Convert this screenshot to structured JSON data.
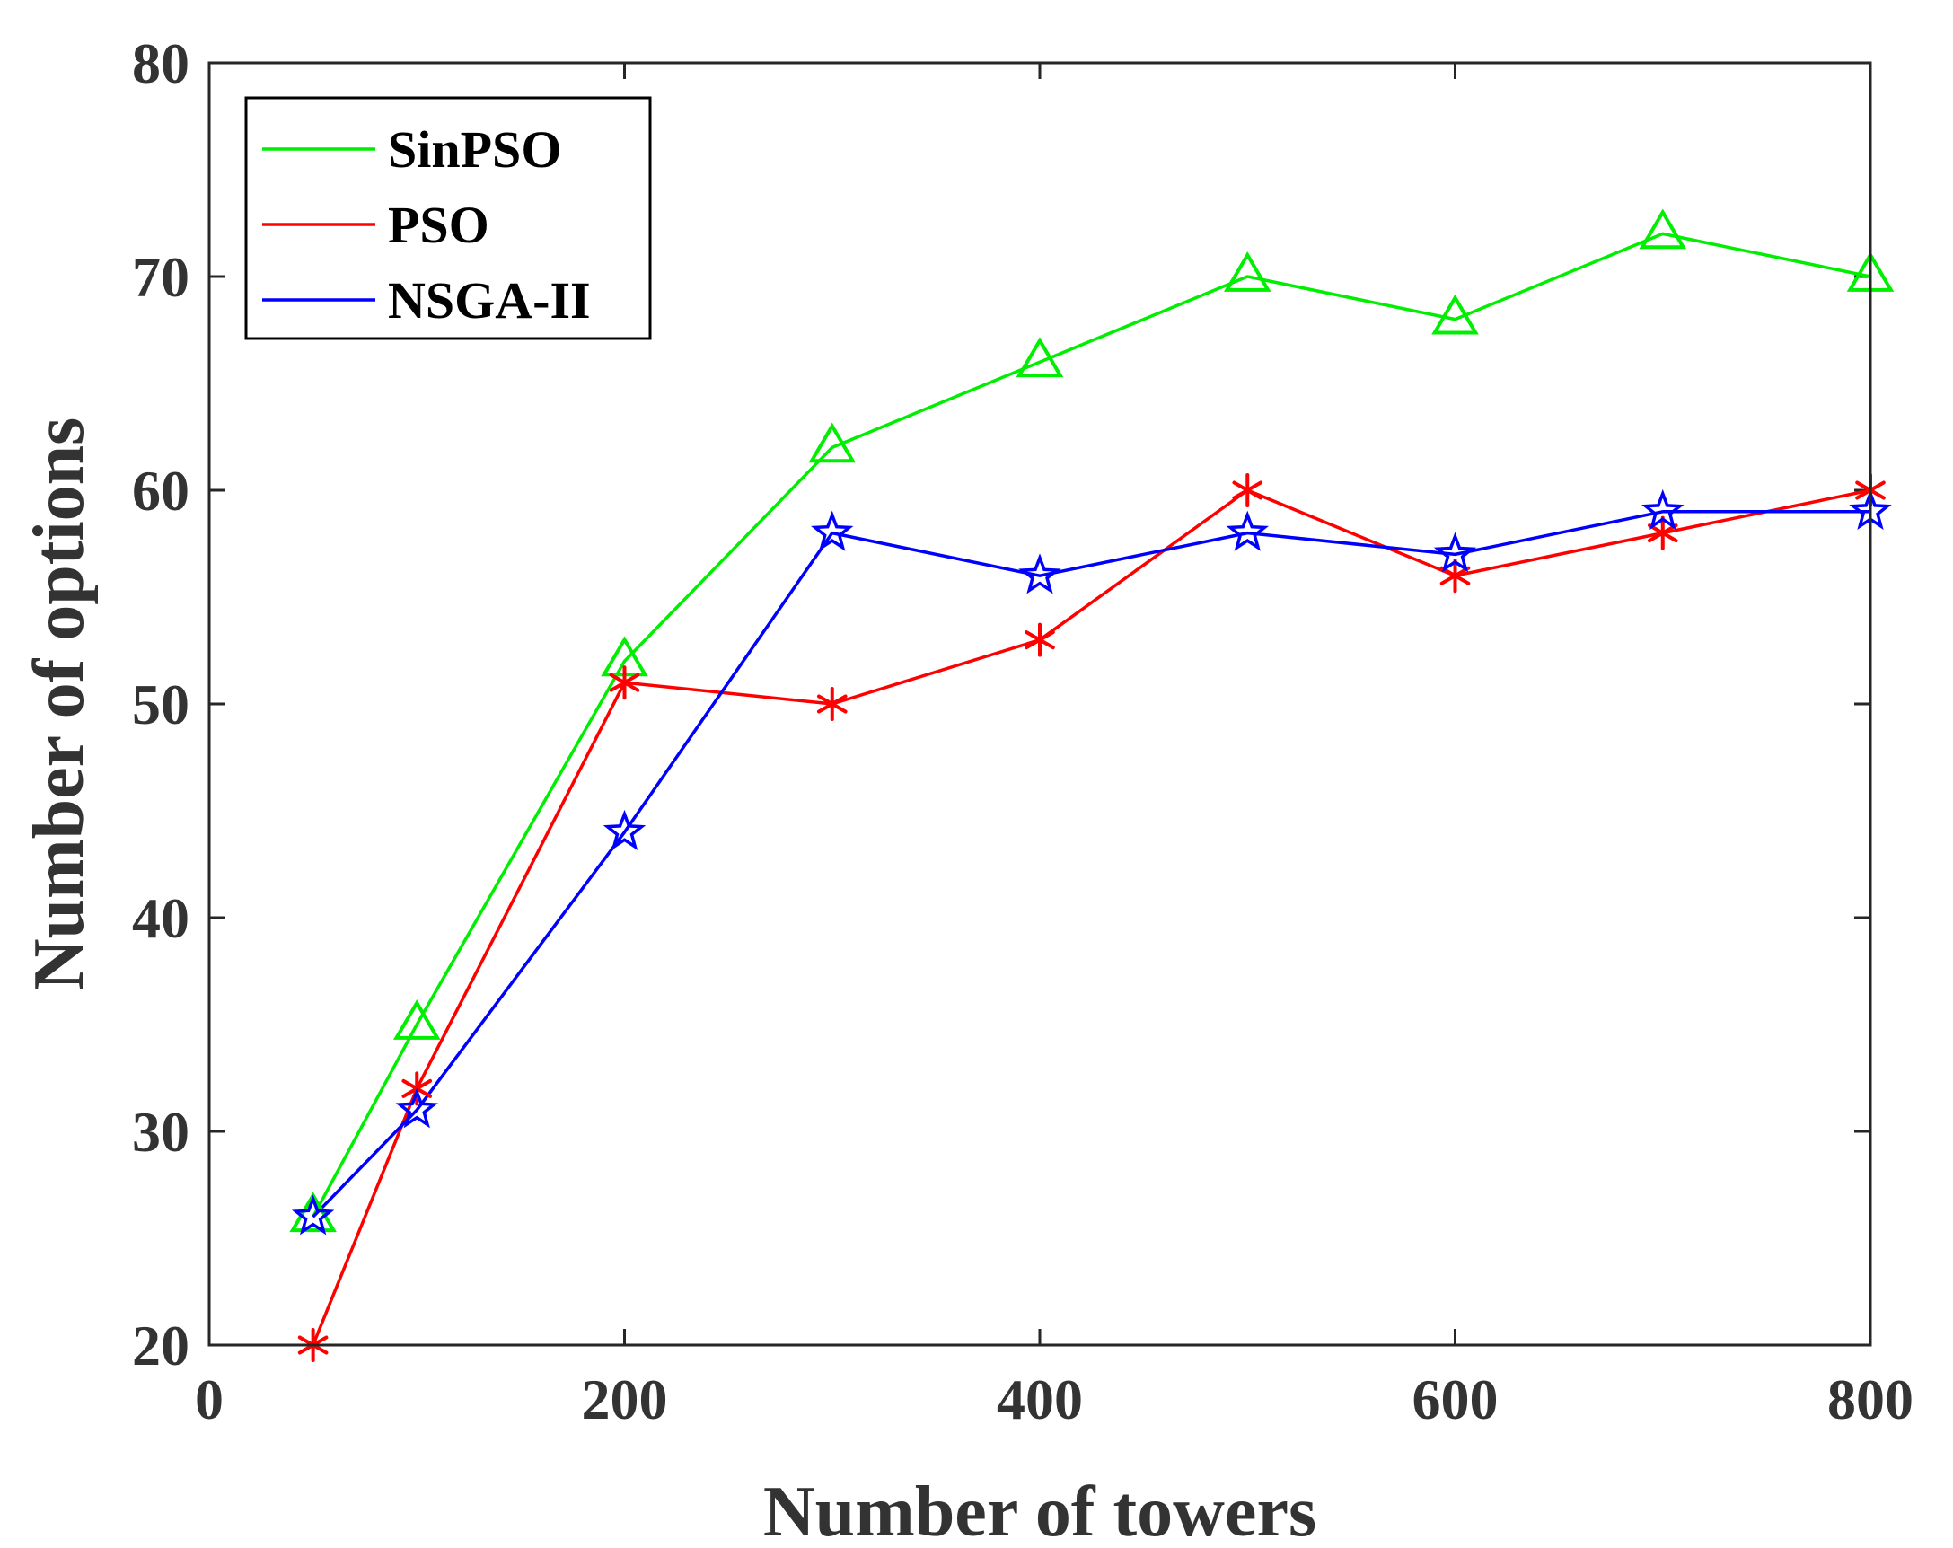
{
  "chart_data": {
    "type": "line",
    "title": "",
    "xlabel": "Number of towers",
    "ylabel": "Number of options",
    "xlim": [
      0,
      800
    ],
    "ylim": [
      20,
      80
    ],
    "xticks": [
      0,
      200,
      400,
      600,
      800
    ],
    "yticks": [
      20,
      30,
      40,
      50,
      60,
      70,
      80
    ],
    "grid": false,
    "legend_position": "top-left",
    "x": [
      50,
      100,
      200,
      300,
      400,
      500,
      600,
      700,
      800
    ],
    "series": [
      {
        "name": "SinPSO",
        "color": "#00ee00",
        "marker": "triangle",
        "values": [
          26,
          35,
          52,
          62,
          66,
          70,
          68,
          72,
          70
        ]
      },
      {
        "name": "PSO",
        "color": "#ff0000",
        "marker": "asterisk",
        "values": [
          20,
          32,
          51,
          50,
          53,
          60,
          56,
          58,
          60
        ]
      },
      {
        "name": "NSGA-II",
        "color": "#0000ff",
        "marker": "star",
        "values": [
          26,
          31,
          44,
          58,
          56,
          58,
          57,
          59,
          59
        ]
      }
    ]
  }
}
